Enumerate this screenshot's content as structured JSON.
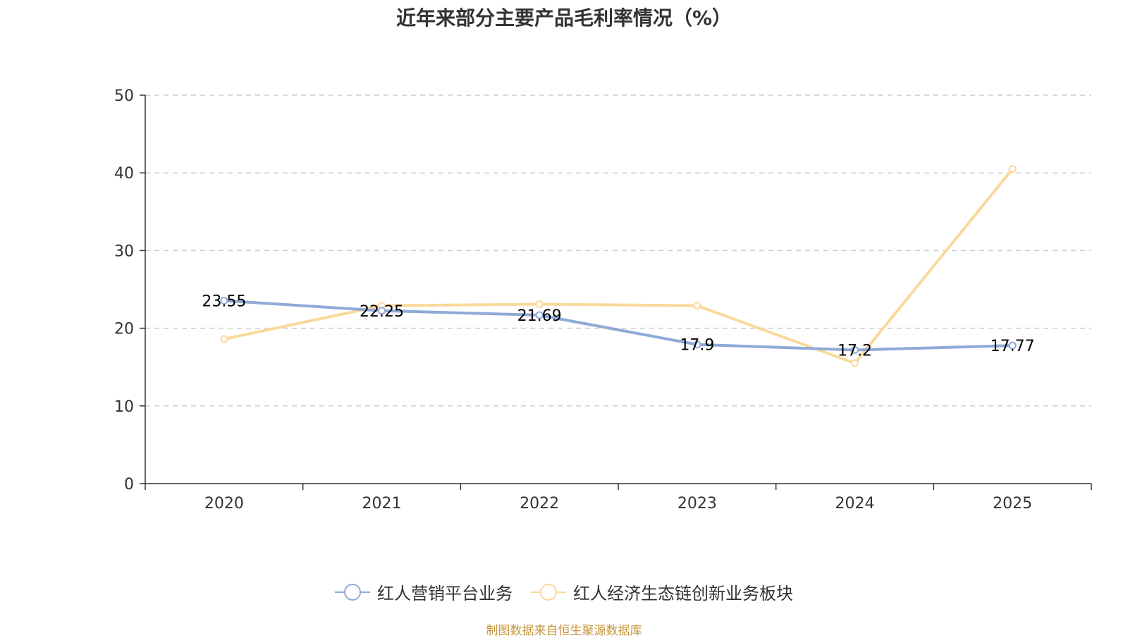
{
  "chart_data": {
    "type": "line",
    "title": "近年来部分主要产品毛利率情况（%）",
    "categories": [
      "2020",
      "2021",
      "2022",
      "2023",
      "2024",
      "2025"
    ],
    "series": [
      {
        "name": "红人营销平台业务",
        "color": "#8eaad7",
        "values": [
          23.55,
          22.25,
          21.69,
          17.9,
          17.2,
          17.77
        ],
        "data_labels": [
          "23.55",
          "22.25",
          "21.69",
          "17.9",
          "17.2",
          "17.77"
        ]
      },
      {
        "name": "红人经济生态链创新业务板块",
        "color": "#f9d99b",
        "values": [
          18.6,
          22.9,
          23.1,
          22.9,
          15.5,
          40.5
        ]
      }
    ],
    "ylim": [
      0,
      50
    ],
    "yticks": [
      0,
      10,
      20,
      30,
      40,
      50
    ],
    "xlabel": "",
    "ylabel": "",
    "grid": true,
    "legend_position": "bottom"
  },
  "source_text": "制图数据来自恒生聚源数据库"
}
